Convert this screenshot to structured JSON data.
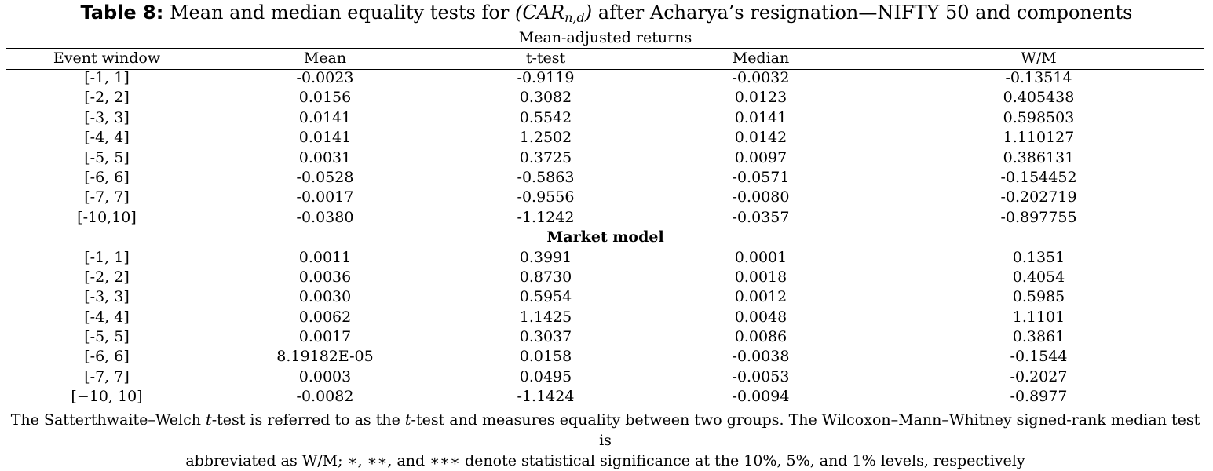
{
  "title": {
    "label": "Table 8:",
    "text_before": " Mean and median equality tests for ",
    "math_open": "(",
    "math_var": "CAR",
    "math_sub": "n,d",
    "math_close": ")",
    "text_after": " after Acharya’s resignation—NIFTY 50 and components"
  },
  "table": {
    "section1_title": "Mean-adjusted returns",
    "headers": {
      "window": "Event window",
      "mean": "Mean",
      "ttest": "t-test",
      "median": "Median",
      "wm": "W/M"
    },
    "section1_rows": [
      {
        "window": "[-1, 1]",
        "mean": "-0.0023",
        "ttest": "-0.9119",
        "median": "-0.0032",
        "wm": "-0.13514"
      },
      {
        "window": "[-2, 2]",
        "mean": "0.0156",
        "ttest": "0.3082",
        "median": "0.0123",
        "wm": "0.405438"
      },
      {
        "window": "[-3, 3]",
        "mean": "0.0141",
        "ttest": "0.5542",
        "median": "0.0141",
        "wm": "0.598503"
      },
      {
        "window": "[-4, 4]",
        "mean": "0.0141",
        "ttest": "1.2502",
        "median": "0.0142",
        "wm": "1.110127"
      },
      {
        "window": "[-5, 5]",
        "mean": "0.0031",
        "ttest": "0.3725",
        "median": "0.0097",
        "wm": "0.386131"
      },
      {
        "window": "[-6, 6]",
        "mean": "-0.0528",
        "ttest": "-0.5863",
        "median": "-0.0571",
        "wm": "-0.154452"
      },
      {
        "window": "[-7, 7]",
        "mean": "-0.0017",
        "ttest": "-0.9556",
        "median": "-0.0080",
        "wm": "-0.202719"
      },
      {
        "window": "[-10,10]",
        "mean": "-0.0380",
        "ttest": "-1.1242",
        "median": "-0.0357",
        "wm": "-0.897755"
      }
    ],
    "section2_title": "Market model",
    "section2_rows": [
      {
        "window": "[-1, 1]",
        "mean": "0.0011",
        "ttest": "0.3991",
        "median": "0.0001",
        "wm": "0.1351"
      },
      {
        "window": "[-2, 2]",
        "mean": "0.0036",
        "ttest": "0.8730",
        "median": "0.0018",
        "wm": "0.4054"
      },
      {
        "window": "[-3, 3]",
        "mean": "0.0030",
        "ttest": "0.5954",
        "median": "0.0012",
        "wm": "0.5985"
      },
      {
        "window": "[-4, 4]",
        "mean": "0.0062",
        "ttest": "1.1425",
        "median": "0.0048",
        "wm": "1.1101"
      },
      {
        "window": "[-5, 5]",
        "mean": "0.0017",
        "ttest": "0.3037",
        "median": "0.0086",
        "wm": "0.3861"
      },
      {
        "window": "[-6, 6]",
        "mean": "8.19182E-05",
        "ttest": "0.0158",
        "median": "-0.0038",
        "wm": "-0.1544"
      },
      {
        "window": "[-7, 7]",
        "mean": "0.0003",
        "ttest": "0.0495",
        "median": "-0.0053",
        "wm": "-0.2027"
      },
      {
        "window": "[−10, 10]",
        "mean": "-0.0082",
        "ttest": "-1.1424",
        "median": "-0.0094",
        "wm": "-0.8977"
      }
    ]
  },
  "note": {
    "line1_a": "The Satterthwaite–Welch ",
    "line1_t1": "t",
    "line1_b": "-test is referred to as the ",
    "line1_t2": "t",
    "line1_c": "-test and measures equality between two groups. The Wilcoxon–Mann–Whitney signed-rank median test is",
    "line2": "abbreviated as W/M; ∗, ∗∗, and ∗∗∗ denote statistical significance at the 10%, 5%, and 1% levels, respectively"
  }
}
